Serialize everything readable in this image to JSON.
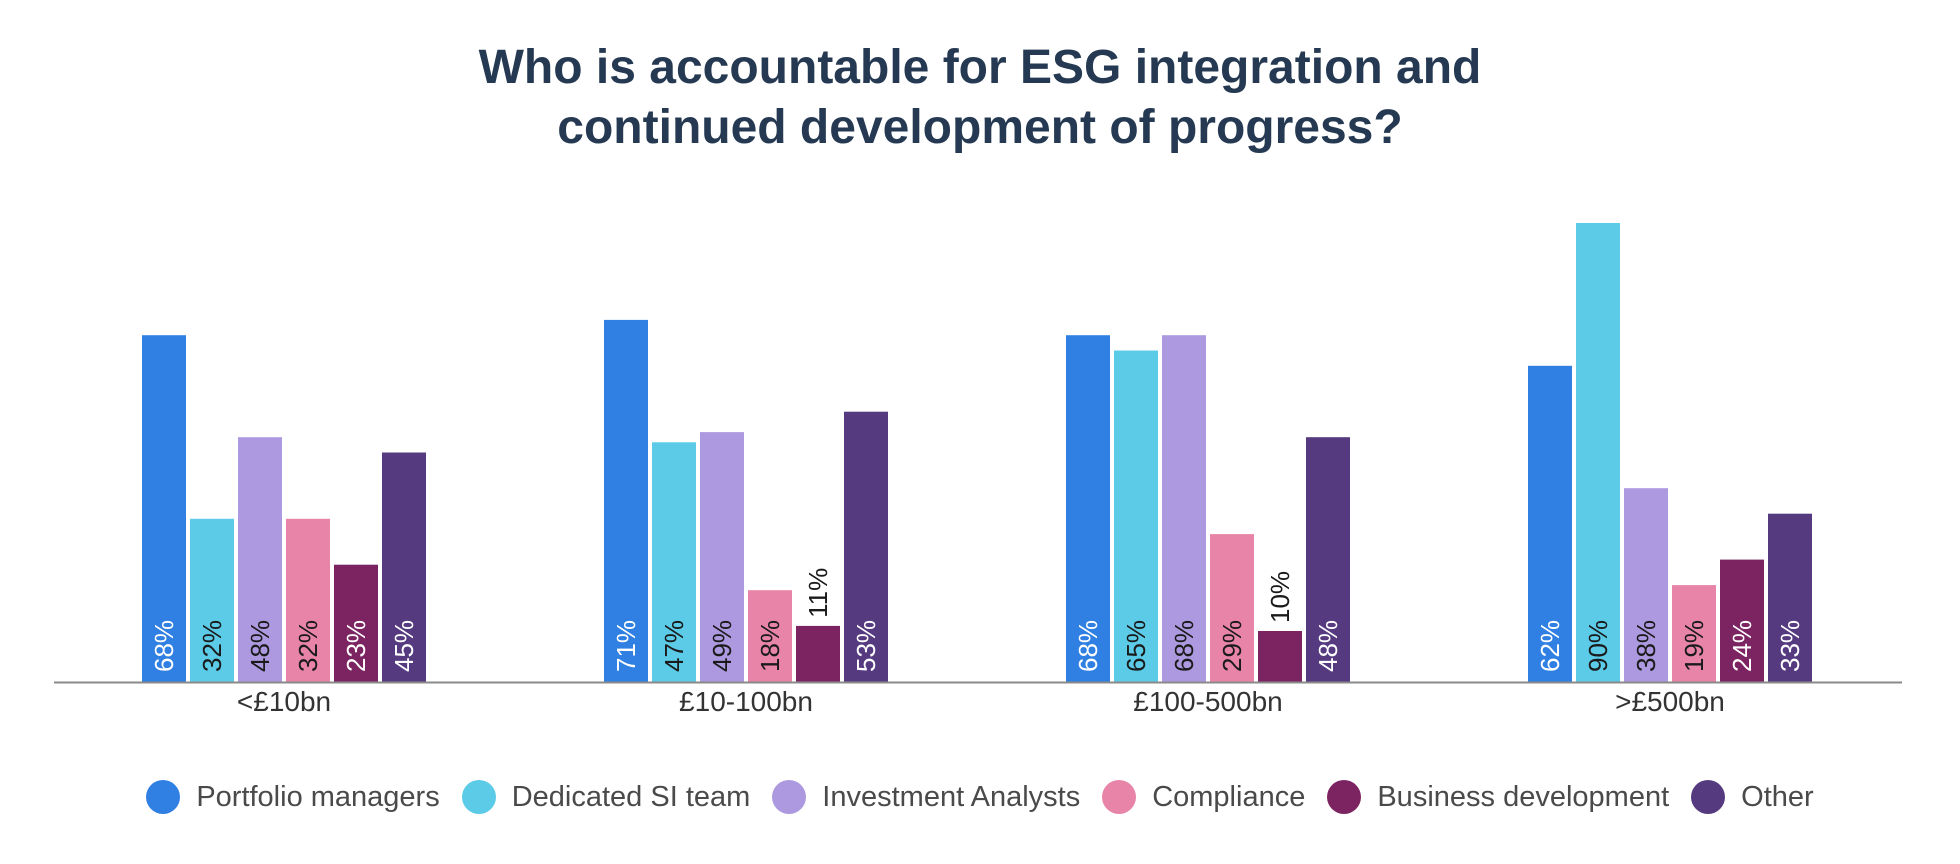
{
  "chart_data": {
    "type": "bar",
    "title_lines": [
      "Who is accountable for ESG integration and",
      "continued development of progress?"
    ],
    "categories": [
      "<£10bn",
      "£10-100bn",
      "£100-500bn",
      ">£500bn"
    ],
    "ylim": [
      0,
      100
    ],
    "grid": false,
    "legend_position": "bottom",
    "value_suffix": "%",
    "series": [
      {
        "name": "Portfolio managers",
        "color": "#2f80e2",
        "label_color": "#ffffff",
        "values": [
          68,
          71,
          68,
          62
        ]
      },
      {
        "name": "Dedicated SI team",
        "color": "#5bcbe8",
        "label_color": "#1a1a1a",
        "values": [
          32,
          47,
          65,
          90
        ]
      },
      {
        "name": "Investment Analysts",
        "color": "#ad99df",
        "label_color": "#1a1a1a",
        "values": [
          48,
          49,
          68,
          38
        ]
      },
      {
        "name": "Compliance",
        "color": "#e884a8",
        "label_color": "#1a1a1a",
        "values": [
          32,
          18,
          29,
          19
        ]
      },
      {
        "name": "Business development",
        "color": "#7c2462",
        "label_color": "#ffffff",
        "values": [
          23,
          11,
          10,
          24
        ]
      },
      {
        "name": "Other",
        "color": "#553a80",
        "label_color": "#ffffff",
        "values": [
          45,
          53,
          48,
          33
        ]
      }
    ]
  }
}
